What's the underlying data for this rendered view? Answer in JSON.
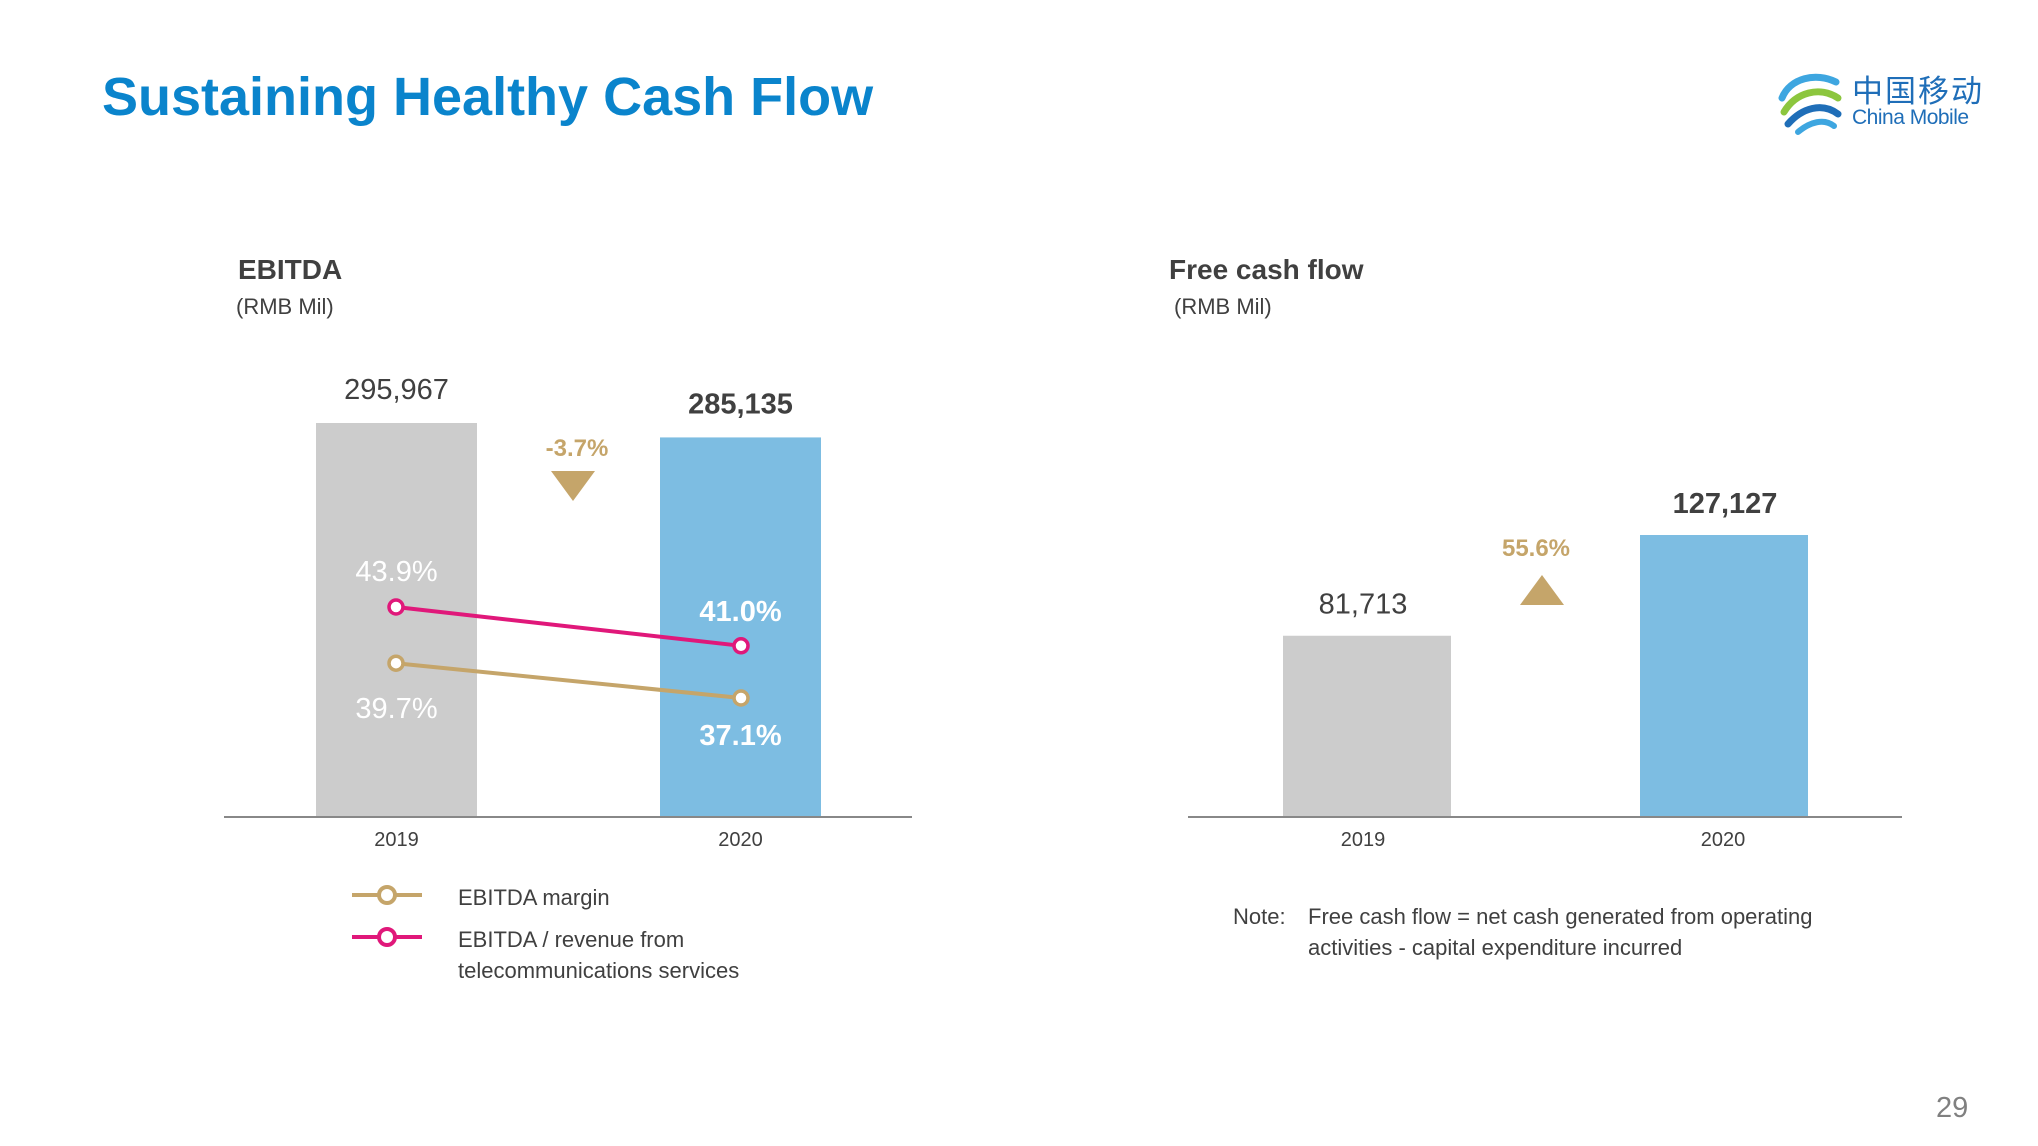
{
  "slide": {
    "title": "Sustaining Healthy Cash Flow",
    "page_number": "29"
  },
  "logo": {
    "name_cn": "中国移动",
    "name_en": "China Mobile",
    "icon": "china-mobile-swirl-icon",
    "color": "#1F6EB8"
  },
  "colors": {
    "title": "#0A84CC",
    "bar_2019": "#CCCCCC",
    "bar_2020": "#7DBDE2",
    "change": "#C5A56A",
    "margin_line": "#C5A56A",
    "revenue_line": "#E0187A",
    "text": "#404040"
  },
  "chart_data": [
    {
      "id": "ebitda",
      "type": "bar",
      "title": "EBITDA",
      "unit": "(RMB Mil)",
      "categories": [
        "2019",
        "2020"
      ],
      "values": [
        295967,
        285135
      ],
      "value_labels": [
        "295,967",
        "285,135"
      ],
      "change": {
        "label": "-3.7%",
        "direction": "down"
      },
      "lines": [
        {
          "name": "EBITDA / revenue from telecommunications services",
          "values": [
            43.9,
            41.0
          ],
          "labels": [
            "43.9%",
            "41.0%"
          ],
          "color": "#E0187A"
        },
        {
          "name": "EBITDA margin",
          "values": [
            39.7,
            37.1
          ],
          "labels": [
            "39.7%",
            "37.1%"
          ],
          "color": "#C5A56A"
        }
      ],
      "legend": [
        {
          "name": "EBITDA margin",
          "color": "#C5A56A"
        },
        {
          "name_line1": "EBITDA / revenue from",
          "name_line2": "telecommunications services",
          "color": "#E0187A"
        }
      ]
    },
    {
      "id": "fcf",
      "type": "bar",
      "title": "Free cash flow",
      "unit": "(RMB Mil)",
      "categories": [
        "2019",
        "2020"
      ],
      "values": [
        81713,
        127127
      ],
      "value_labels": [
        "81,713",
        "127,127"
      ],
      "change": {
        "label": "55.6%",
        "direction": "up"
      },
      "note": {
        "label": "Note:",
        "line1": "Free cash flow = net cash generated from operating",
        "line2": "activities - capital expenditure incurred"
      }
    }
  ]
}
